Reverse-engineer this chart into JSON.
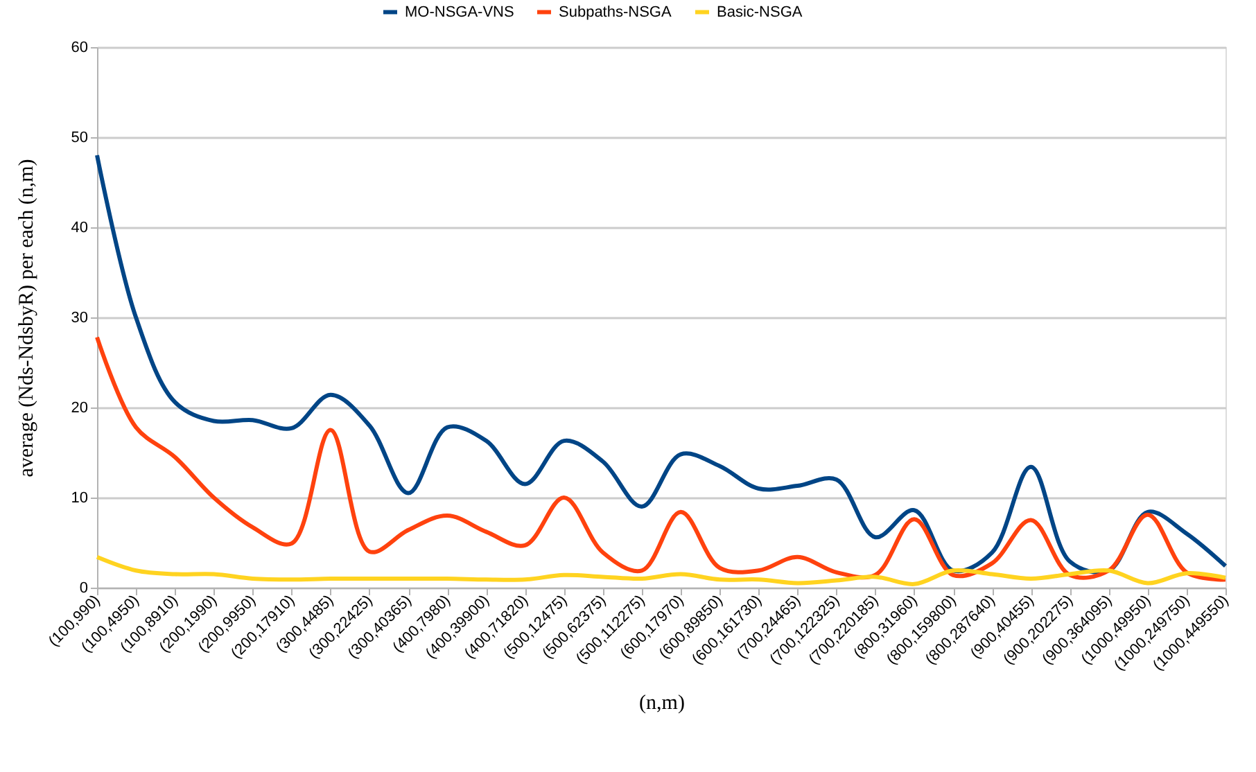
{
  "chart_data": {
    "type": "line",
    "xlabel": "(n,m)",
    "ylabel": "average  (Nds-NdsbyR) per each (n,m)",
    "categories": [
      "(100,990)",
      "(100,4950)",
      "(100,8910)",
      "(200,1990)",
      "(200,9950)",
      "(200,17910)",
      "(300,4485)",
      "(300,22425)",
      "(300,40365)",
      "(400,7980)",
      "(400,39900)",
      "(400,71820)",
      "(500,12475)",
      "(500,62375)",
      "(500,112275)",
      "(600,17970)",
      "(600,89850)",
      "(600,161730)",
      "(700,24465)",
      "(700,122325)",
      "(700,220185)",
      "(800,31960)",
      "(800,159800)",
      "(800,287640)",
      "(900,40455)",
      "(900,202275)",
      "(900,364095)",
      "(1000,49950)",
      "(1000,249750)",
      "(1000,449550)"
    ],
    "series": [
      {
        "name": "MO-NSGA-VNS",
        "color": "#004586",
        "values": [
          48,
          30,
          20.6,
          18.5,
          18.6,
          17.7,
          21.4,
          18,
          10.5,
          17.8,
          16.3,
          11.5,
          16.3,
          14,
          9,
          14.8,
          13.5,
          11,
          11.3,
          12,
          5.6,
          8.6,
          1.9,
          3.9,
          13.4,
          2.9,
          1.9,
          8.4,
          6,
          2.4
        ]
      },
      {
        "name": "Subpaths-NSGA",
        "color": "#ff420e",
        "values": [
          27.8,
          17.8,
          14.5,
          10,
          6.7,
          4.9,
          17.5,
          4,
          6.4,
          8,
          6.2,
          4.7,
          10,
          3.9,
          1.9,
          8.4,
          2.2,
          1.9,
          3.4,
          1.7,
          1.4,
          7.6,
          1.4,
          2.7,
          7.5,
          1.4,
          1.9,
          8.1,
          1.7,
          0.9
        ]
      },
      {
        "name": "Basic-NSGA",
        "color": "#ffd320",
        "values": [
          3.4,
          1.9,
          1.5,
          1.5,
          1,
          0.9,
          1,
          1,
          1,
          1,
          0.9,
          0.9,
          1.4,
          1.2,
          1,
          1.5,
          0.9,
          0.9,
          0.5,
          0.8,
          1.2,
          0.4,
          1.9,
          1.5,
          1,
          1.5,
          1.9,
          0.5,
          1.6,
          1.1
        ]
      }
    ],
    "ylim": [
      0,
      60
    ],
    "yticks": [
      0,
      10,
      20,
      30,
      40,
      50,
      60
    ],
    "grid": "y",
    "legend": "top",
    "line_style": "solid"
  }
}
